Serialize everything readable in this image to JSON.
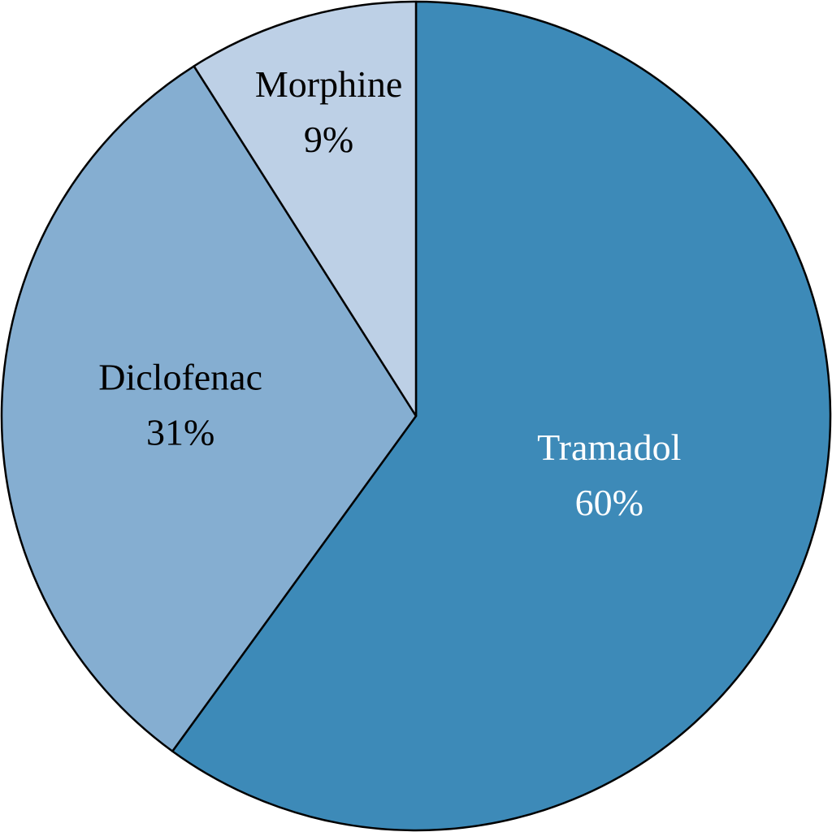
{
  "chart_data": {
    "type": "pie",
    "categories": [
      "Tramadol",
      "Diclofenac",
      "Morphine"
    ],
    "values": [
      60,
      31,
      9
    ],
    "value_labels": [
      "60%",
      "31%",
      "9%"
    ],
    "colors": [
      "#3d8ab8",
      "#85aed1",
      "#bdd0e6"
    ]
  }
}
